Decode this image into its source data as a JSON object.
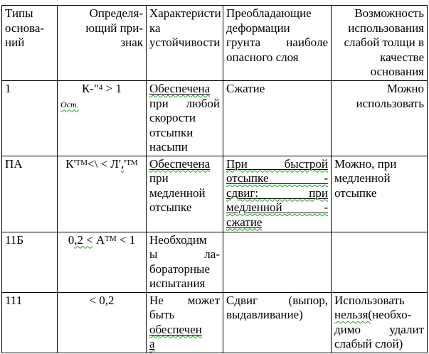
{
  "colors": {
    "text": "#000000",
    "border": "#000000",
    "background": "#ffffff",
    "spellcheck_squiggle": "#1ca01c"
  },
  "table": {
    "header": [
      {
        "lines": [
          {
            "a": "l",
            "s": [
              {
                "t": "Типы\nоснова-\nний"
              }
            ]
          }
        ]
      },
      {
        "lines": [
          {
            "a": "r",
            "s": [
              {
                "t": "Определя-\nющий при-\nзнак"
              }
            ]
          }
        ]
      },
      {
        "lines": [
          {
            "a": "l",
            "s": [
              {
                "t": "Характеристи\nка\nустойчивости"
              }
            ]
          }
        ]
      },
      {
        "lines": [
          {
            "a": "jj",
            "s": [
              {
                "t": "Преобладающие\nдеформации\nгрунта наиболе"
              }
            ]
          },
          {
            "a": "l",
            "s": [
              {
                "t": "опасного слоя"
              }
            ]
          }
        ]
      },
      {
        "lines": [
          {
            "a": "r",
            "s": [
              {
                "t": "Возможность\nиспользования\nслабой толщи в\nкачестве\nоснования"
              }
            ]
          }
        ]
      }
    ],
    "rows": [
      [
        {
          "lines": [
            {
              "a": "l",
              "s": [
                {
                  "t": "1"
                }
              ]
            }
          ]
        },
        {
          "lines": [
            {
              "a": "c",
              "s": [
                {
                  "t": "К-\""
                },
                {
                  "t": "4",
                  "c": "sup"
                },
                {
                  "t": " > 1"
                }
              ]
            },
            {
              "a": "l",
              "s": [
                {
                  "t": "Ост.",
                  "c": "fm sq"
                }
              ]
            }
          ]
        },
        {
          "lines": [
            {
              "a": "jj",
              "s": [
                {
                  "t": "Обеспечена",
                  "c": "u sq"
                },
                {
                  "t": "\nпри любой\nскорости\nотсыпки\nнасыпи"
                }
              ]
            }
          ]
        },
        {
          "lines": [
            {
              "a": "l",
              "s": [
                {
                  "t": "Сжатие"
                }
              ]
            }
          ]
        },
        {
          "lines": [
            {
              "a": "r",
              "s": [
                {
                  "t": "Можно\nиспользовать"
                }
              ]
            }
          ]
        }
      ],
      [
        {
          "lines": [
            {
              "a": "l",
              "s": [
                {
                  "t": "ПА"
                }
              ]
            }
          ]
        },
        {
          "lines": [
            {
              "a": "c",
              "s": [
                {
                  "t": "К'"
                },
                {
                  "t": "ТМ",
                  "c": "sup"
                },
                {
                  "t": "<\\ < Л'"
                },
                {
                  "t": ",",
                  "c": "sq"
                },
                {
                  "t": "'"
                },
                {
                  "t": "ТМ",
                  "c": "sup"
                }
              ]
            }
          ]
        },
        {
          "lines": [
            {
              "a": "jj",
              "s": [
                {
                  "t": "Обеспечена",
                  "c": "u sq"
                },
                {
                  "t": "\nпри\nмедленной\nотсыпке"
                }
              ]
            }
          ]
        },
        {
          "lines": [
            {
              "a": "jj",
              "s": [
                {
                  "t": "При быстрой\nотсыпке -\nсдвиг: при\nмедленной -\nсжатие",
                  "c": "u sq"
                }
              ]
            }
          ]
        },
        {
          "lines": [
            {
              "a": "l",
              "s": [
                {
                  "t": "Можно, при\nмедленной\nотсыпке"
                }
              ]
            }
          ]
        }
      ],
      [
        {
          "lines": [
            {
              "a": "l",
              "s": [
                {
                  "t": "11Б"
                }
              ]
            }
          ]
        },
        {
          "lines": [
            {
              "a": "c",
              "s": [
                {
                  "t": "0"
                },
                {
                  "t": ",2 <",
                  "c": "sq"
                },
                {
                  "t": " А"
                },
                {
                  "t": "ТМ",
                  "c": "sup"
                },
                {
                  "t": " < 1"
                }
              ]
            }
          ]
        },
        {
          "lines": [
            {
              "a": "jj",
              "s": [
                {
                  "t": "Необходим\nы ла-\nбораторные\nиспытания"
                }
              ]
            }
          ]
        },
        {
          "lines": []
        },
        {
          "lines": []
        }
      ],
      [
        {
          "lines": [
            {
              "a": "l",
              "s": [
                {
                  "t": "111"
                }
              ]
            }
          ]
        },
        {
          "lines": [
            {
              "a": "c",
              "s": [
                {
                  "t": "< 0,2"
                }
              ]
            }
          ]
        },
        {
          "lines": [
            {
              "a": "jj",
              "s": [
                {
                  "t": "Не может\nбыть\n"
                },
                {
                  "t": "обеспечен",
                  "c": "u sq"
                },
                {
                  "t": "\n"
                },
                {
                  "t": "а",
                  "c": "u sq"
                }
              ]
            }
          ]
        },
        {
          "lines": [
            {
              "a": "jj",
              "s": [
                {
                  "t": "Сдвиг (выпор,\nвыдавливание)"
                }
              ]
            }
          ]
        },
        {
          "lines": [
            {
              "a": "jj",
              "s": [
                {
                  "t": "Использовать\n"
                },
                {
                  "t": "нельзя(",
                  "c": "sq"
                },
                {
                  "t": "необхо-\nдимо удалит"
                }
              ]
            },
            {
              "a": "l",
              "s": [
                {
                  "t": "слабый слой)"
                }
              ]
            }
          ]
        }
      ]
    ]
  }
}
